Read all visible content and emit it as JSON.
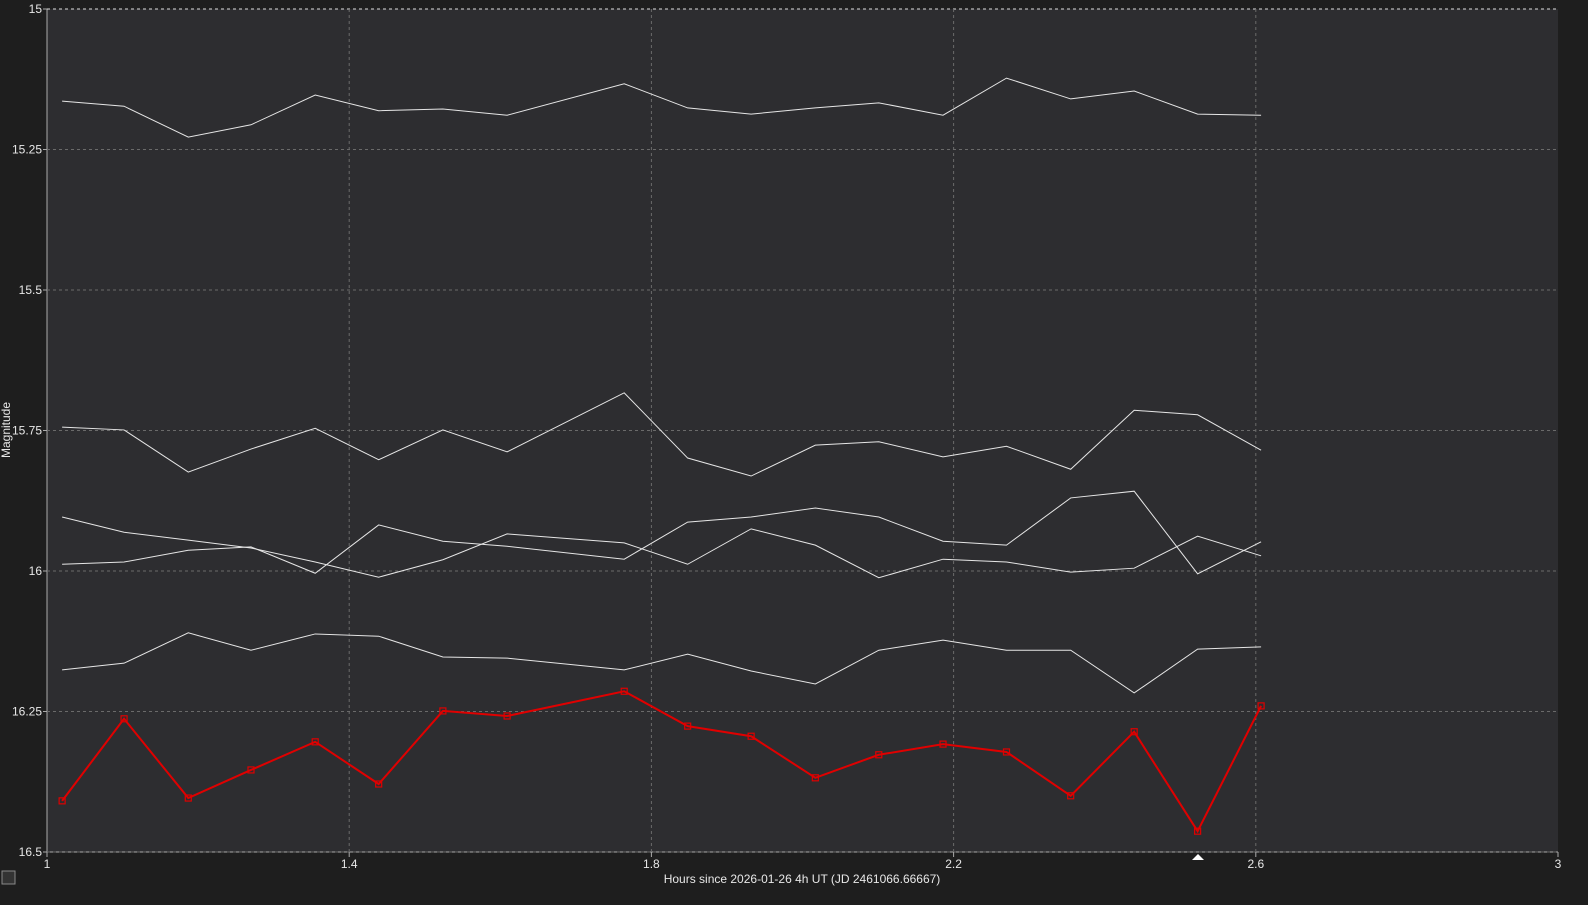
{
  "chart_data": {
    "type": "line",
    "xlabel": "Hours since 2026-01-26 4h UT (JD 2461066.66667)",
    "ylabel": "Magnitude",
    "x": [
      1.02,
      1.102,
      1.187,
      1.27,
      1.355,
      1.439,
      1.524,
      1.609,
      1.764,
      1.848,
      1.932,
      2.017,
      2.101,
      2.186,
      2.27,
      2.355,
      2.439,
      2.523,
      2.607
    ],
    "series": [
      {
        "color": "#e6e6e6",
        "values": [
          15.164,
          15.173,
          15.228,
          15.206,
          15.153,
          15.181,
          15.178,
          15.189,
          15.133,
          15.176,
          15.187,
          15.176,
          15.167,
          15.189,
          15.123,
          15.16,
          15.146,
          15.187,
          15.189
        ]
      },
      {
        "color": "#e6e6e6",
        "values": [
          15.744,
          15.749,
          15.824,
          15.783,
          15.746,
          15.802,
          15.749,
          15.788,
          15.683,
          15.799,
          15.831,
          15.776,
          15.77,
          15.797,
          15.778,
          15.819,
          15.714,
          15.722,
          15.785
        ]
      },
      {
        "color": "#e6e6e6",
        "values": [
          15.904,
          15.931,
          15.945,
          15.959,
          15.984,
          16.011,
          15.98,
          15.934,
          15.95,
          15.988,
          15.925,
          15.954,
          16.012,
          15.979,
          15.984,
          16.002,
          15.995,
          15.938,
          15.973
        ]
      },
      {
        "color": "#e6e6e6",
        "values": [
          15.988,
          15.984,
          15.963,
          15.957,
          16.004,
          15.918,
          15.947,
          15.956,
          15.979,
          15.913,
          15.904,
          15.888,
          15.904,
          15.947,
          15.954,
          15.87,
          15.858,
          16.005,
          15.948
        ]
      },
      {
        "color": "#e6e6e6",
        "values": [
          16.176,
          16.164,
          16.11,
          16.141,
          16.112,
          16.116,
          16.153,
          16.155,
          16.176,
          16.148,
          16.178,
          16.201,
          16.141,
          16.123,
          16.141,
          16.141,
          16.217,
          16.139,
          16.135
        ]
      },
      {
        "color": "#e00000",
        "marker": "square",
        "values": [
          16.409,
          16.263,
          16.404,
          16.354,
          16.304,
          16.379,
          16.249,
          16.258,
          16.214,
          16.276,
          16.294,
          16.368,
          16.327,
          16.308,
          16.322,
          16.4,
          16.286,
          16.463,
          16.24
        ]
      }
    ],
    "xlim": [
      1,
      3
    ],
    "xticks": [
      1,
      1.4,
      1.8,
      2.2,
      2.6,
      3
    ],
    "ylim": [
      16.5,
      15
    ],
    "yticks": [
      15,
      15.25,
      15.5,
      15.75,
      16,
      16.25,
      16.5
    ],
    "grid": true
  }
}
